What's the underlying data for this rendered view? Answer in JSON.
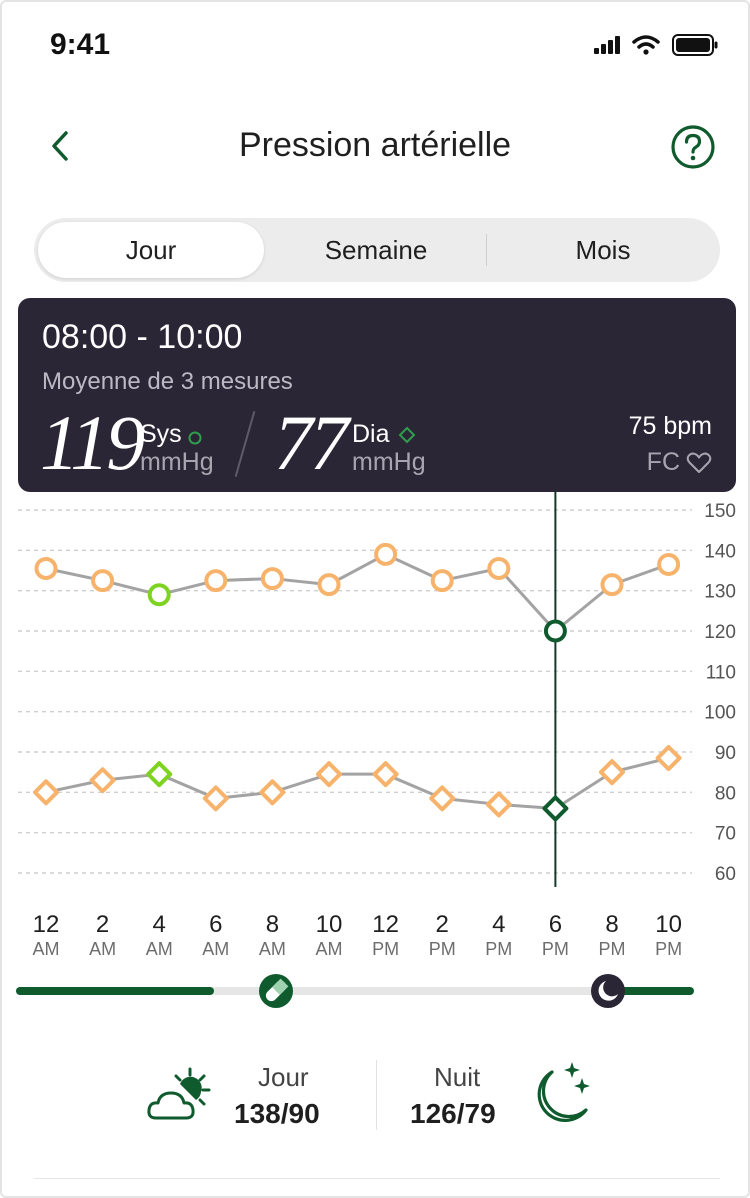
{
  "status_bar": {
    "time": "9:41",
    "icons": [
      "signal-icon",
      "wifi-icon",
      "battery-icon"
    ]
  },
  "header": {
    "title": "Pression artérielle",
    "back_icon": "chevron-left-icon",
    "help_icon": "question-circle-icon"
  },
  "tabs": [
    {
      "label": "Jour",
      "active": true
    },
    {
      "label": "Semaine",
      "active": false
    },
    {
      "label": "Mois",
      "active": false
    }
  ],
  "summary": {
    "range": "08:00 - 10:00",
    "subtitle": "Moyenne de 3 mesures",
    "sys_value": "119",
    "sys_label": "Sys",
    "dia_value": "77",
    "dia_label": "Dia",
    "unit": "mmHg",
    "heart_rate": "75 bpm",
    "hr_label": "FC"
  },
  "colors": {
    "accent": "#0f5b2e",
    "orange": "#f7b36b",
    "green_light": "#7ed321",
    "line_gray": "#a3a3a3",
    "card_bg": "#2b2636"
  },
  "chart_data": {
    "type": "line",
    "x": [
      "12 AM",
      "2 AM",
      "4 AM",
      "6 AM",
      "8 AM",
      "10 AM",
      "12 PM",
      "2 PM",
      "4 PM",
      "6 PM",
      "8 PM",
      "10 PM"
    ],
    "x_hours": [
      "12",
      "2",
      "4",
      "6",
      "8",
      "10",
      "12",
      "2",
      "4",
      "6",
      "8",
      "10"
    ],
    "x_ampm": [
      "AM",
      "AM",
      "AM",
      "AM",
      "AM",
      "AM",
      "PM",
      "PM",
      "PM",
      "PM",
      "PM",
      "PM"
    ],
    "series": [
      {
        "marker": "circle",
        "values": [
          135.5,
          132.5,
          129,
          132.5,
          133,
          131.5,
          139,
          132.5,
          135.5,
          120,
          131.5,
          136.5
        ]
      },
      {
        "marker": "diamond",
        "values": [
          80,
          83,
          84.5,
          78.5,
          80,
          84.5,
          84.5,
          78.5,
          77,
          76,
          85,
          88.5
        ]
      }
    ],
    "highlight_index": 9,
    "low_marker_index": 2,
    "y_ticks": [
      150,
      140,
      130,
      120,
      110,
      100,
      90,
      80,
      70,
      60
    ],
    "ylim": [
      60,
      150
    ],
    "grid": true,
    "y_axis_side": "right"
  },
  "schedule_bar": {
    "pill_icon": "pill-icon",
    "moon_icon": "moon-icon"
  },
  "day_night": {
    "day_label": "Jour",
    "day_value": "138/90",
    "day_icon": "cloud-sun-icon",
    "night_label": "Nuit",
    "night_value": "126/79",
    "night_icon": "moon-stars-icon"
  }
}
